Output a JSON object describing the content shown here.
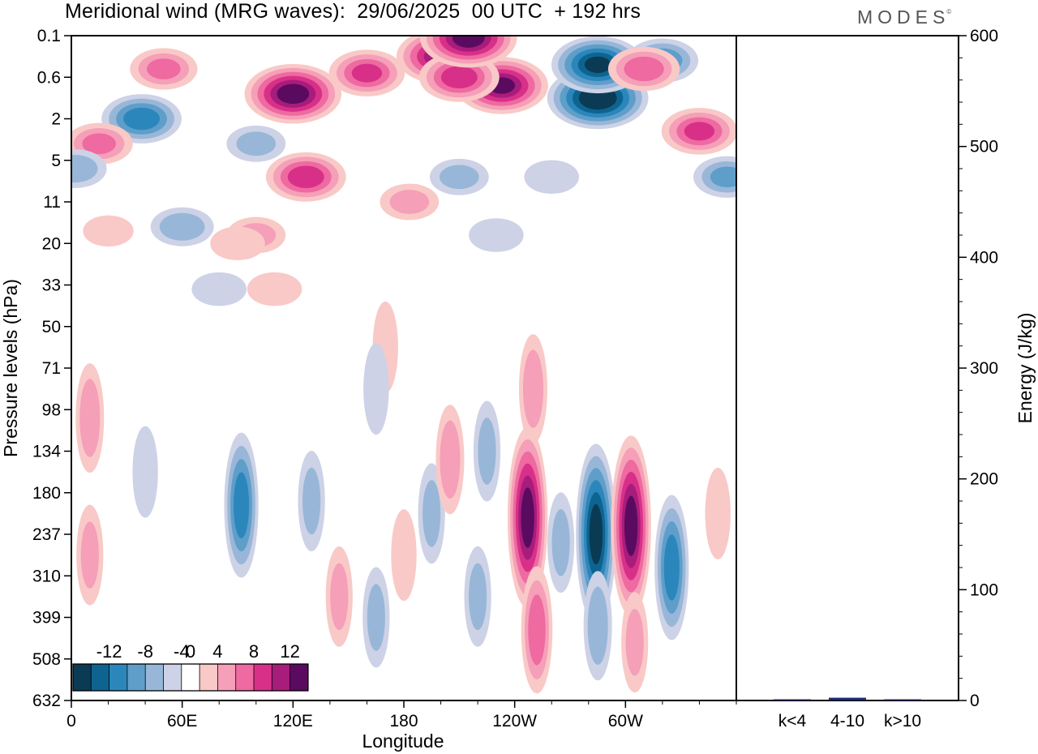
{
  "title": "Meridional wind (MRG waves):  29/06/2025  00 UTC  + 192 hrs",
  "brand": "MODES",
  "brand_mark": "©",
  "chart_data": [
    {
      "type": "heatmap",
      "name": "Meridional wind (MRG waves)",
      "xlabel": "Longitude",
      "ylabel": "Pressure levels (hPa)",
      "x_ticks": [
        "0",
        "60E",
        "120E",
        "180",
        "120W",
        "60W"
      ],
      "x_range": [
        0,
        360
      ],
      "y_ticks": [
        "0.1",
        "0.6",
        "2",
        "5",
        "11",
        "20",
        "33",
        "50",
        "71",
        "98",
        "134",
        "180",
        "237",
        "310",
        "399",
        "508",
        "632"
      ],
      "colorbar": {
        "labels": [
          "-12",
          "-8",
          "-4",
          "0",
          "4",
          "8",
          "12"
        ],
        "levels": [
          -14,
          -12,
          -10,
          -8,
          -6,
          -4,
          -2,
          2,
          4,
          6,
          8,
          10,
          12,
          14
        ],
        "colors": [
          "#0b3a55",
          "#0e6490",
          "#2b87bb",
          "#5f9ec9",
          "#98b7d8",
          "#cdd2e6",
          "#ffffff",
          "#f9c9c7",
          "#f59fb8",
          "#ee6aa0",
          "#d83089",
          "#a81c7c",
          "#5a0b60"
        ]
      },
      "anomalies": [
        {
          "lon": 38,
          "lev": 2.0,
          "value": -9
        },
        {
          "lon": 15,
          "lev": 2.6,
          "value": 6
        },
        {
          "lon": 50,
          "lev": 0.8,
          "value": 6
        },
        {
          "lon": 120,
          "lev": 1.4,
          "value": 13
        },
        {
          "lon": 100,
          "lev": 2.6,
          "value": -4
        },
        {
          "lon": 127,
          "lev": 3.4,
          "value": 9
        },
        {
          "lon": 100,
          "lev": 4.8,
          "value": 4
        },
        {
          "lon": 60,
          "lev": 4.6,
          "value": -5
        },
        {
          "lon": 90,
          "lev": 5.0,
          "value": 3
        },
        {
          "lon": 2,
          "lev": 3.2,
          "value": -5
        },
        {
          "lon": 200,
          "lev": 0.5,
          "value": 11
        },
        {
          "lon": 233,
          "lev": 1.2,
          "value": 12
        },
        {
          "lon": 210,
          "lev": 1.0,
          "value": 9
        },
        {
          "lon": 160,
          "lev": 0.9,
          "value": 8
        },
        {
          "lon": 215,
          "lev": 0.05,
          "value": 13
        },
        {
          "lon": 285,
          "lev": 1.5,
          "value": -14
        },
        {
          "lon": 285,
          "lev": 0.7,
          "value": -12
        },
        {
          "lon": 320,
          "lev": 0.6,
          "value": -7
        },
        {
          "lon": 310,
          "lev": 0.8,
          "value": 7
        },
        {
          "lon": 340,
          "lev": 2.3,
          "value": 8
        },
        {
          "lon": 183,
          "lev": 4.0,
          "value": 4
        },
        {
          "lon": 210,
          "lev": 3.4,
          "value": -4
        },
        {
          "lon": 260,
          "lev": 3.4,
          "value": -3
        },
        {
          "lon": 355,
          "lev": 3.4,
          "value": -6
        },
        {
          "lon": 230,
          "lev": 4.8,
          "value": -3
        },
        {
          "lon": 20,
          "lev": 4.7,
          "value": 2
        },
        {
          "lon": 80,
          "lev": 6.1,
          "value": -3
        },
        {
          "lon": 110,
          "lev": 6.1,
          "value": 3
        },
        {
          "lon": 170,
          "lev": 7.5,
          "value": 3
        },
        {
          "lon": 250,
          "lev": 8.5,
          "value": 5
        },
        {
          "lon": 165,
          "lev": 8.5,
          "value": -3
        },
        {
          "lon": 10,
          "lev": 9.2,
          "value": 5
        },
        {
          "lon": 10,
          "lev": 12.5,
          "value": 4
        },
        {
          "lon": 40,
          "lev": 10.5,
          "value": -3
        },
        {
          "lon": 92,
          "lev": 11.3,
          "value": -9
        },
        {
          "lon": 130,
          "lev": 11.2,
          "value": -4
        },
        {
          "lon": 145,
          "lev": 13.5,
          "value": 4
        },
        {
          "lon": 165,
          "lev": 14.0,
          "value": -4
        },
        {
          "lon": 180,
          "lev": 12.5,
          "value": 3
        },
        {
          "lon": 195,
          "lev": 11.5,
          "value": -4
        },
        {
          "lon": 205,
          "lev": 10.2,
          "value": 5
        },
        {
          "lon": 225,
          "lev": 10.0,
          "value": -4
        },
        {
          "lon": 220,
          "lev": 13.5,
          "value": -4
        },
        {
          "lon": 247,
          "lev": 11.6,
          "value": 13
        },
        {
          "lon": 252,
          "lev": 14.3,
          "value": 7
        },
        {
          "lon": 265,
          "lev": 12.2,
          "value": -4
        },
        {
          "lon": 284,
          "lev": 12.0,
          "value": -13
        },
        {
          "lon": 285,
          "lev": 14.2,
          "value": -5
        },
        {
          "lon": 303,
          "lev": 11.8,
          "value": 13
        },
        {
          "lon": 305,
          "lev": 14.6,
          "value": 4
        },
        {
          "lon": 325,
          "lev": 12.8,
          "value": -9
        },
        {
          "lon": 350,
          "lev": 11.5,
          "value": 3
        }
      ]
    },
    {
      "type": "bar",
      "name": "Energy",
      "ylabel": "Energy (J/kg)",
      "categories": [
        "k<4",
        "4-10",
        "k>10"
      ],
      "values": [
        0.4,
        2.5,
        0.4
      ],
      "ylim": [
        0,
        600
      ],
      "y_ticks": [
        "0",
        "100",
        "200",
        "300",
        "400",
        "500",
        "600"
      ],
      "bar_color": "#1d2a6e"
    }
  ]
}
